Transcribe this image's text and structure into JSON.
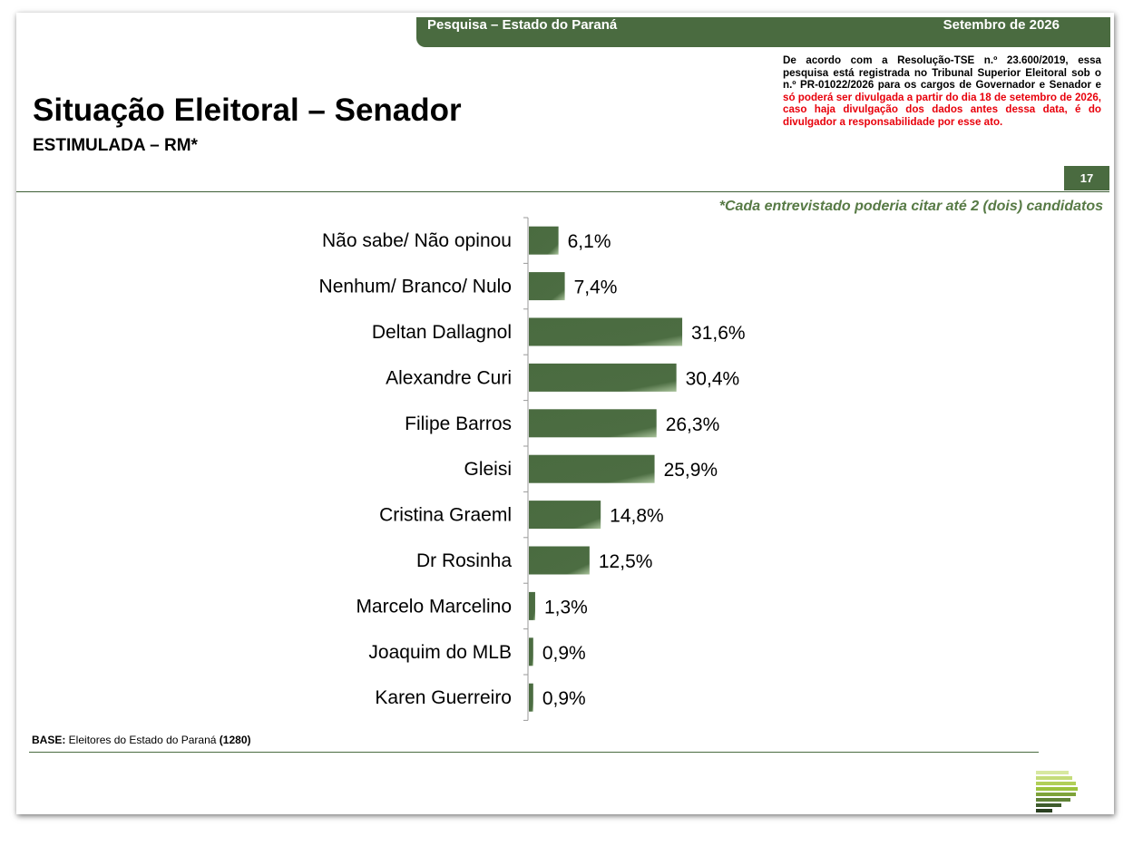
{
  "header": {
    "survey_label": "Pesquisa – Estado do Paraná",
    "date_label": "Setembro de 2026"
  },
  "title": "Situação Eleitoral – Senador",
  "subtitle": "ESTIMULADA – RM*",
  "notice": {
    "part1": "De acordo com a Resolução-TSE n.º 23.600/2019, essa pesquisa está registrada no Tribunal Superior Eleitoral sob o n.º PR-01022/2026 para os cargos de Governador e Senador e ",
    "part2_red": "só poderá ser divulgada a partir do dia 18 de setembro de 2026, caso haja divulgação dos dados antes dessa data, é do divulgador a responsabilidade por esse ato."
  },
  "page_number": "17",
  "footnote": "*Cada entrevistado poderia citar até 2 (dois) candidatos",
  "base": {
    "label": "BASE:",
    "text": " Eleitores do Estado do Paraná ",
    "count": "(1280)"
  },
  "colors": {
    "accent_green": "#4a6b40",
    "bar_green": "#4a6b40",
    "footnote_green": "#577a45",
    "warning_red": "#e8000b"
  },
  "logo_icon": "striped-bars-logo-icon",
  "chart_data": {
    "type": "bar",
    "orientation": "horizontal",
    "categories": [
      "Não sabe/ Não opinou",
      "Nenhum/ Branco/ Nulo",
      "Deltan Dallagnol",
      "Alexandre Curi",
      "Filipe Barros",
      "Gleisi",
      "Cristina Graeml",
      "Dr Rosinha",
      "Marcelo Marcelino",
      "Joaquim do MLB",
      "Karen Guerreiro"
    ],
    "values": [
      6.1,
      7.4,
      31.6,
      30.4,
      26.3,
      25.9,
      14.8,
      12.5,
      1.3,
      0.9,
      0.9
    ],
    "value_labels": [
      "6,1%",
      "7,4%",
      "31,6%",
      "30,4%",
      "26,3%",
      "25,9%",
      "14,8%",
      "12,5%",
      "1,3%",
      "0,9%",
      "0,9%"
    ],
    "unit": "%",
    "grid": false,
    "legend": "none"
  }
}
